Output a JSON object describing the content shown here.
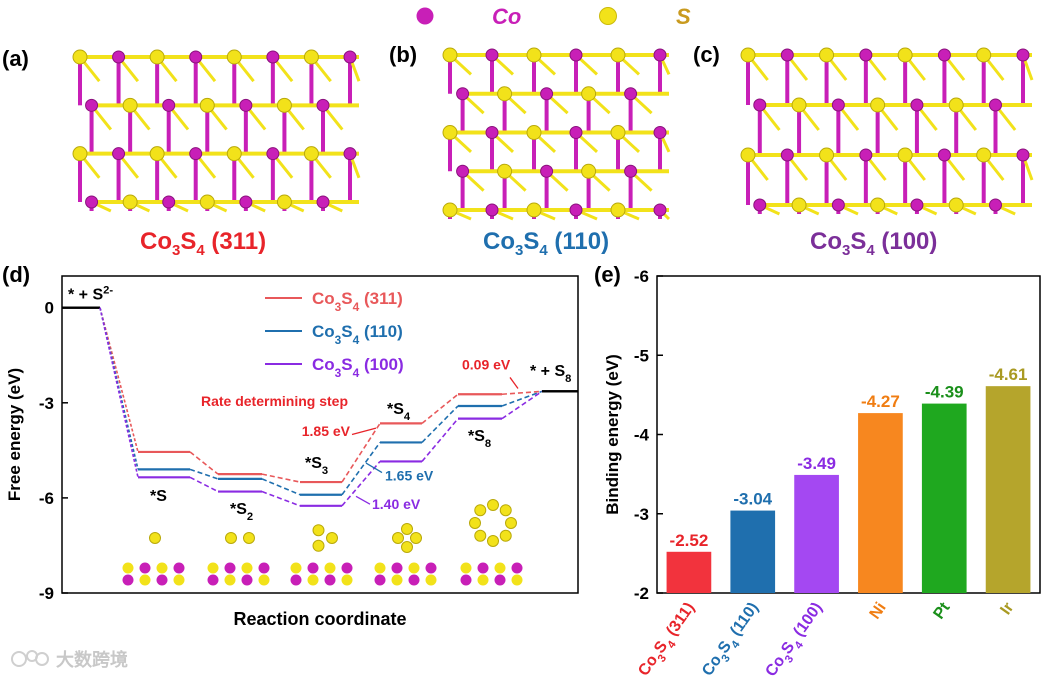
{
  "legend_top": {
    "co_label": "Co",
    "s_label": "S",
    "co_color": "#c81fb7",
    "s_color": "#f2e21a",
    "co_text_color": "#c81fb7",
    "s_text_color": "#c99a1e"
  },
  "panels": {
    "a": {
      "label": "(a)",
      "title_base": "Co",
      "title_sub1": "3",
      "title_mid": "S",
      "title_sub2": "4",
      "title_face": " (311)",
      "color": "#e8242a"
    },
    "b": {
      "label": "(b)",
      "title_base": "Co",
      "title_sub1": "3",
      "title_mid": "S",
      "title_sub2": "4",
      "title_face": " (110)",
      "color": "#1f6fae"
    },
    "c": {
      "label": "(c)",
      "title_base": "Co",
      "title_sub1": "3",
      "title_mid": "S",
      "title_sub2": "4",
      "title_face": " (100)",
      "color": "#7b2f99"
    },
    "d": {
      "label": "(d)"
    },
    "e": {
      "label": "(e)"
    }
  },
  "chart_data": [
    {
      "type": "line",
      "title": "",
      "xlabel": "Reaction coordinate",
      "ylabel": "Free energy (eV)",
      "ylim": [
        -9,
        1
      ],
      "yticks": [
        "0",
        "-3",
        "-6",
        "-9"
      ],
      "steps": [
        "* + S2-",
        "*S",
        "*S2",
        "*S3",
        "*S4",
        "*S8",
        "* + S8"
      ],
      "step_labels": {
        "start": "* + S",
        "start_sup": "2-",
        "s1": "*S",
        "s2_base": "*S",
        "s2_sub": "2",
        "s3_base": "*S",
        "s3_sub": "3",
        "s4_base": "*S",
        "s4_sub": "4",
        "s8_base": "*S",
        "s8_sub": "8",
        "end": "* + S",
        "end_sub": "8"
      },
      "series": [
        {
          "name": "Co3S4 (311)",
          "legend_base": "Co",
          "legend_sub1": "3",
          "legend_mid": "S",
          "legend_sub2": "4",
          "legend_face": " (311)",
          "color": "#e8585a",
          "values": [
            0,
            -4.55,
            -5.25,
            -5.5,
            -3.65,
            -2.73,
            -2.64
          ]
        },
        {
          "name": "Co3S4 (110)",
          "legend_base": "Co",
          "legend_sub1": "3",
          "legend_mid": "S",
          "legend_sub2": "4",
          "legend_face": " (110)",
          "color": "#1f6fae",
          "values": [
            0,
            -5.1,
            -5.4,
            -5.9,
            -4.25,
            -3.1,
            -2.64
          ]
        },
        {
          "name": "Co3S4 (100)",
          "legend_base": "Co",
          "legend_sub1": "3",
          "legend_mid": "S",
          "legend_sub2": "4",
          "legend_face": " (100)",
          "color": "#8a2be2",
          "values": [
            0,
            -5.35,
            -5.8,
            -6.25,
            -4.85,
            -3.5,
            -2.64
          ]
        }
      ],
      "annotations": {
        "rds": "Rate determining step",
        "e311": "1.85 eV",
        "e110": "1.65 eV",
        "e100": "1.40 eV",
        "e009": "0.09 eV"
      },
      "annotation_colors": {
        "red": "#e8242a",
        "blue": "#1f6fae",
        "purple": "#8a2be2"
      }
    },
    {
      "type": "bar",
      "title": "",
      "xlabel": "",
      "ylabel": "Binding energy (eV)",
      "ylim": [
        -2,
        -6
      ],
      "yticks": [
        "-2",
        "-3",
        "-4",
        "-5",
        "-6"
      ],
      "categories": [
        {
          "base": "Co",
          "sub1": "3",
          "mid": "S",
          "sub2": "4",
          "face": " (311)"
        },
        {
          "base": "Co",
          "sub1": "3",
          "mid": "S",
          "sub2": "4",
          "face": " (110)"
        },
        {
          "base": "Co",
          "sub1": "3",
          "mid": "S",
          "sub2": "4",
          "face": " (100)"
        },
        {
          "base": "Ni"
        },
        {
          "base": "Pt"
        },
        {
          "base": "Ir"
        }
      ],
      "values": [
        -2.52,
        -3.04,
        -3.49,
        -4.27,
        -4.39,
        -4.61
      ],
      "value_labels": [
        "-2.52",
        "-3.04",
        "-3.49",
        "-4.27",
        "-4.39",
        "-4.61"
      ],
      "colors": [
        "#f2333d",
        "#1f6fae",
        "#a448f2",
        "#f7871f",
        "#1fa81f",
        "#b5a52c"
      ],
      "label_colors": [
        "#e8242a",
        "#1f6fae",
        "#8a2be2",
        "#f07d12",
        "#1a8f1a",
        "#a99a22"
      ]
    }
  ],
  "watermark": {
    "text": "大数跨境"
  }
}
